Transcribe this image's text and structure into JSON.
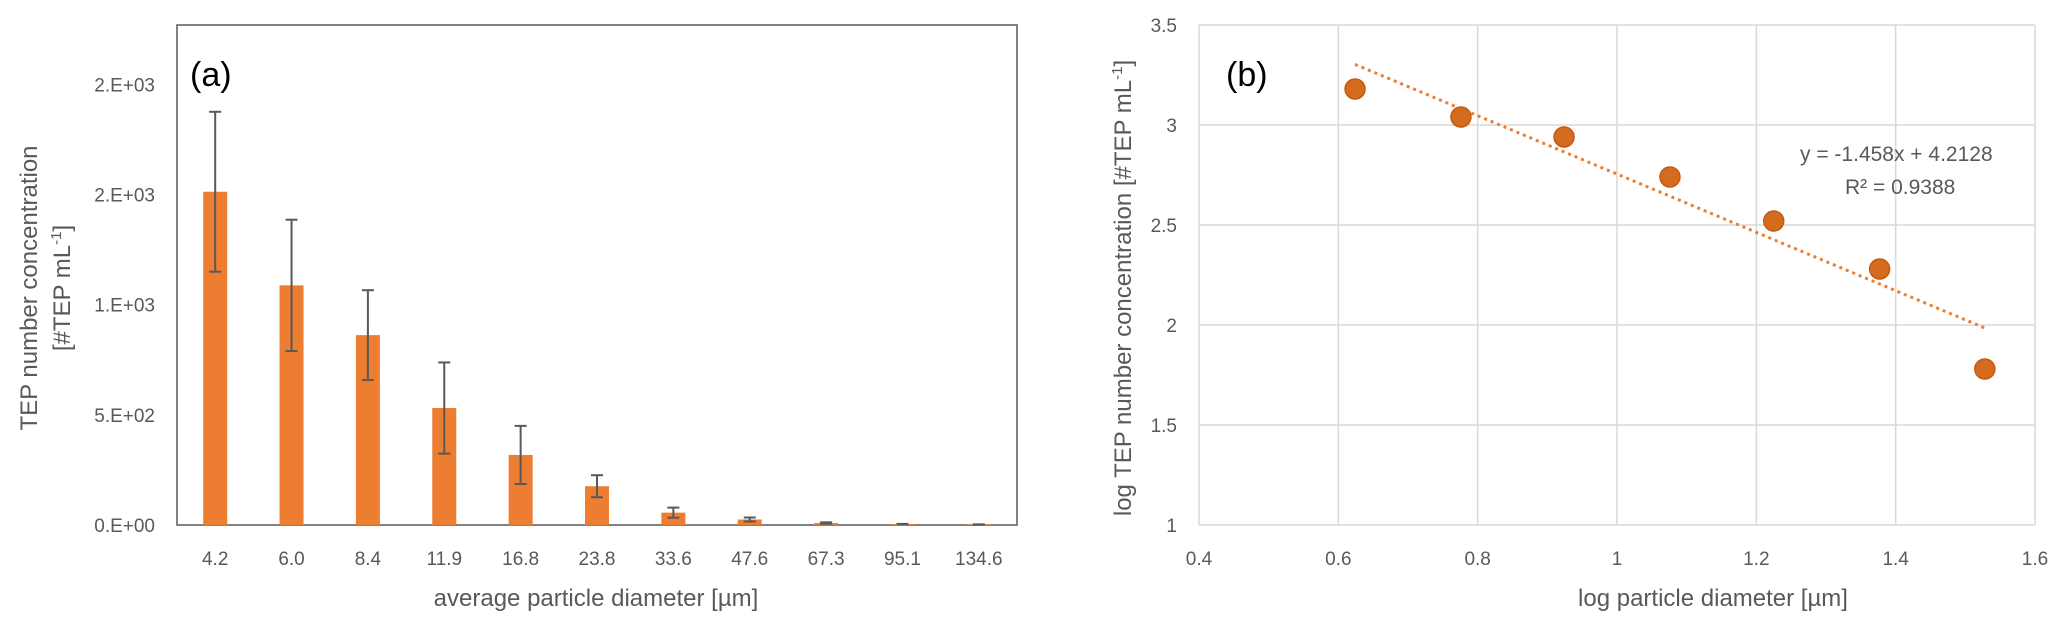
{
  "chart_data": [
    {
      "panel": "(a)",
      "type": "bar",
      "ylabel_line1": "TEP number concentration",
      "ylabel_line2": "[#TEP mL",
      "ylabel_sup": "-1",
      "ylabel_close": "]",
      "xlabel": "average particle diameter [µm]",
      "categories": [
        "4.2",
        "6.0",
        "8.4",
        "11.9",
        "16.8",
        "23.8",
        "33.6",
        "47.6",
        "67.3",
        "95.1",
        "134.6"
      ],
      "values": [
        1513,
        1088,
        862,
        531,
        318,
        176,
        56,
        25,
        9,
        4,
        2
      ],
      "errors": [
        363,
        298,
        204,
        207,
        132,
        50,
        23,
        9,
        3,
        1,
        1
      ],
      "yticks": [
        {
          "value": 0,
          "label": "0.E+00"
        },
        {
          "value": 500,
          "label": "5.E+02"
        },
        {
          "value": 1000,
          "label": "1.E+03"
        },
        {
          "value": 1500,
          "label": "2.E+03"
        },
        {
          "value": 2000,
          "label": "2.E+03"
        }
      ],
      "ylim": [
        0,
        2270
      ],
      "colors": {
        "bar": "#ED7D31",
        "error": "#595959",
        "frame": "#595959"
      }
    },
    {
      "panel": "(b)",
      "type": "scatter",
      "xlabel": "log particle diameter [µm]",
      "ylabel_pre": "log TEP number concentration [#TEP mL",
      "ylabel_sup": "-1",
      "ylabel_close": "]",
      "x": [
        0.624,
        0.776,
        0.924,
        1.076,
        1.225,
        1.377,
        1.528
      ],
      "y": [
        3.18,
        3.04,
        2.94,
        2.74,
        2.52,
        2.28,
        1.78
      ],
      "xlim": [
        0.4,
        1.6
      ],
      "ylim": [
        1,
        3.5
      ],
      "xticks": [
        "0.4",
        "0.6",
        "0.8",
        "1",
        "1.2",
        "1.4",
        "1.6"
      ],
      "yticks": [
        "1",
        "1.5",
        "2",
        "2.5",
        "3",
        "3.5"
      ],
      "grid": true,
      "trendline": {
        "slope": -1.458,
        "intercept": 4.2128,
        "x_range": [
          0.624,
          1.528
        ]
      },
      "equation": "y = -1.458x + 4.2128",
      "r_squared": "R² = 0.9388",
      "colors": {
        "marker": "#D56B1F",
        "marker_edge": "#C55A11",
        "trend": "#ED7D31",
        "grid": "#D9D9D9"
      }
    }
  ]
}
